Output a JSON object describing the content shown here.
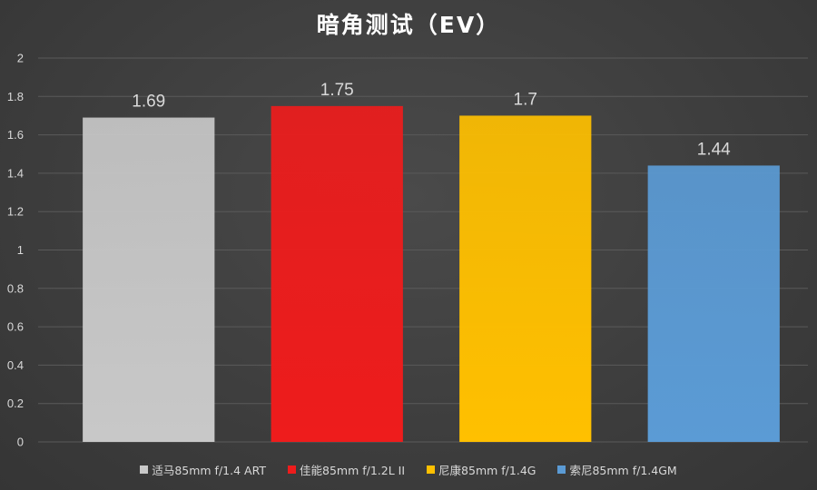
{
  "chart_data": {
    "type": "bar",
    "title": "暗角测试（EV）",
    "categories": [
      "适马85mm f/1.4 ART",
      "佳能85mm f/1.2L II",
      "尼康85mm f/1.4G",
      "索尼85mm f/1.4GM"
    ],
    "values": [
      1.69,
      1.75,
      1.7,
      1.44
    ],
    "value_labels": [
      "1.69",
      "1.75",
      "1.7",
      "1.44"
    ],
    "colors": [
      "#c8c8c8",
      "#ee1c1c",
      "#ffc000",
      "#5b9bd5"
    ],
    "ylim": [
      0,
      2
    ],
    "yticks": [
      "0",
      "0.2",
      "0.4",
      "0.6",
      "0.8",
      "1",
      "1.2",
      "1.4",
      "1.6",
      "1.8",
      "2"
    ],
    "grid": true,
    "legend_position": "bottom",
    "xlabel": "",
    "ylabel": ""
  }
}
